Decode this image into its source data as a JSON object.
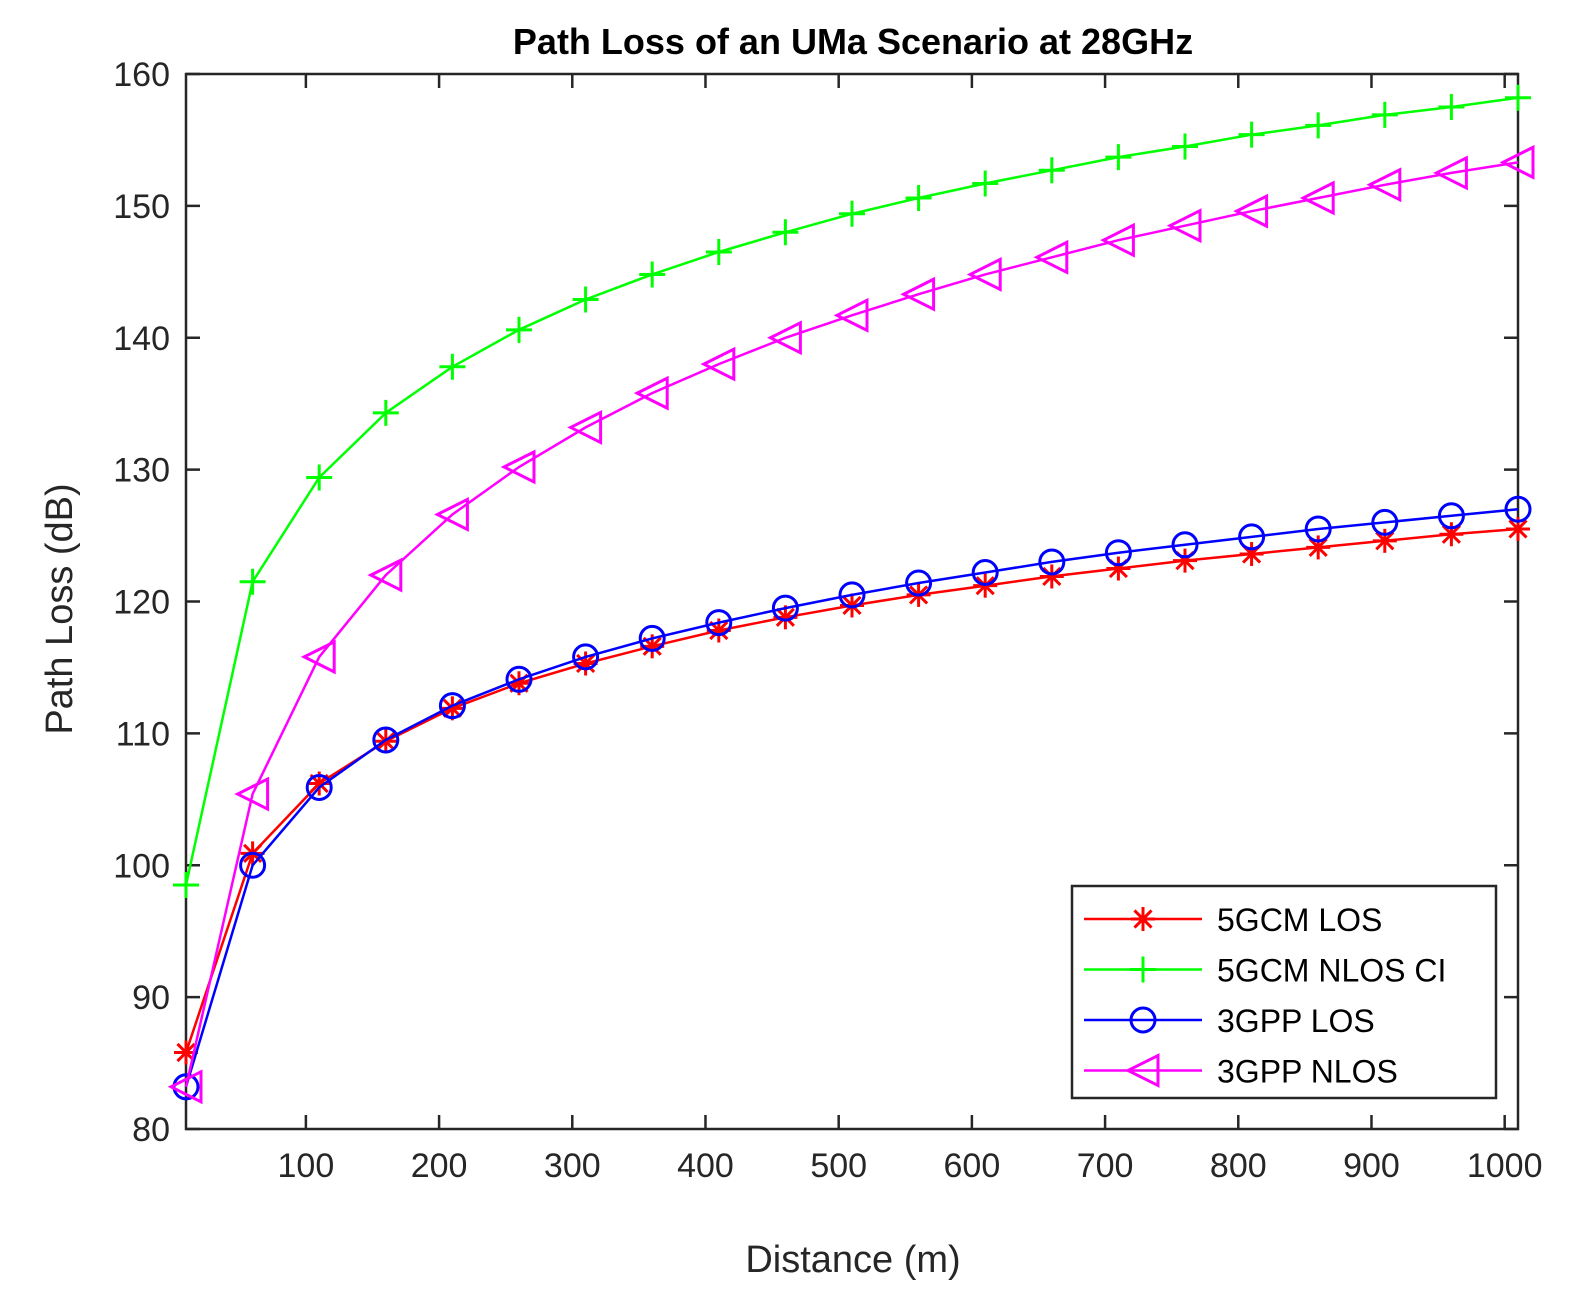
{
  "chart_data": {
    "type": "line",
    "title": "Path Loss of an UMa Scenario at 28GHz",
    "xlabel": "Distance (m)",
    "ylabel": "Path Loss (dB)",
    "xlim": [
      10,
      1010
    ],
    "ylim": [
      80,
      160
    ],
    "grid": false,
    "legend_position": "bottom-right",
    "xticks": [
      100,
      200,
      300,
      400,
      500,
      600,
      700,
      800,
      900,
      1000
    ],
    "xtick_labels": [
      "100",
      "200",
      "300",
      "400",
      "500",
      "600",
      "700",
      "800",
      "900",
      "1000"
    ],
    "yticks": [
      80,
      90,
      100,
      110,
      120,
      130,
      140,
      150,
      160
    ],
    "ytick_labels": [
      "80",
      "90",
      "100",
      "110",
      "120",
      "130",
      "140",
      "150",
      "160"
    ],
    "x": [
      10,
      60,
      110,
      160,
      210,
      260,
      310,
      360,
      410,
      460,
      510,
      560,
      610,
      660,
      710,
      760,
      810,
      860,
      910,
      960,
      1010
    ],
    "series": [
      {
        "name": "5GCM LOS",
        "color": "#ff0000",
        "marker": "asterisk",
        "values": [
          85.8,
          100.9,
          106.2,
          109.4,
          111.9,
          113.8,
          115.3,
          116.6,
          117.8,
          118.8,
          119.7,
          120.5,
          121.2,
          121.9,
          122.5,
          123.1,
          123.6,
          124.1,
          124.6,
          125.1,
          125.5
        ]
      },
      {
        "name": "5GCM NLOS CI",
        "color": "#00ff00",
        "marker": "plus",
        "values": [
          98.5,
          121.5,
          129.4,
          134.3,
          137.8,
          140.6,
          142.9,
          144.8,
          146.5,
          148.0,
          149.4,
          150.6,
          151.7,
          152.7,
          153.7,
          154.5,
          155.4,
          156.1,
          156.9,
          157.5,
          158.2
        ]
      },
      {
        "name": "3GPP LOS",
        "color": "#0000ff",
        "marker": "circle",
        "values": [
          83.2,
          100.0,
          105.9,
          109.5,
          112.1,
          114.1,
          115.8,
          117.2,
          118.4,
          119.5,
          120.5,
          121.4,
          122.2,
          123.0,
          123.7,
          124.3,
          124.9,
          125.5,
          126.0,
          126.5,
          127.0
        ]
      },
      {
        "name": "3GPP NLOS",
        "color": "#ff00ff",
        "marker": "triangle-left",
        "values": [
          83.2,
          105.4,
          115.8,
          122.0,
          126.6,
          130.2,
          133.2,
          135.8,
          138.0,
          140.0,
          141.7,
          143.3,
          144.8,
          146.1,
          147.4,
          148.5,
          149.6,
          150.6,
          151.6,
          152.5,
          153.3
        ]
      }
    ]
  }
}
